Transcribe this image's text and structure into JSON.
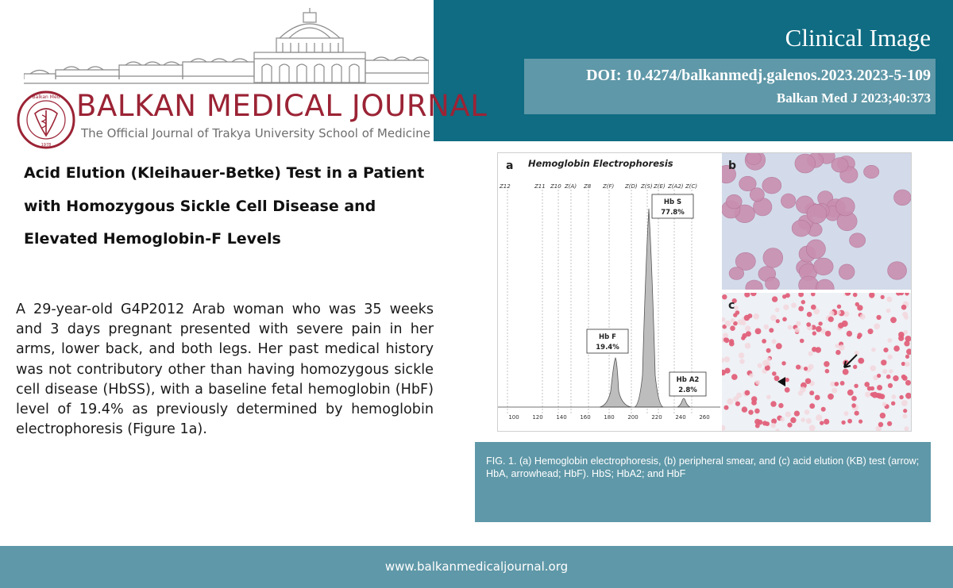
{
  "header": {
    "article_type": "Clinical Image",
    "doi": "DOI: 10.4274/balkanmedj.galenos.2023.2023-5-109",
    "citation": "Balkan Med J 2023;40:373",
    "colors": {
      "panel": "#0f6c82",
      "doi_box": "#5f98a8"
    }
  },
  "logo": {
    "journal_name": "BALKAN MEDICAL JOURNAL",
    "subtitle": "The Official Journal of Trakya University School of Medicine",
    "seal_text": "Balkan Medical Journal",
    "seal_year": "1978",
    "brand_color": "#9b2335"
  },
  "article": {
    "title": "Acid Elution (Kleihauer-Betke) Test in a Patient with Homozygous Sickle Cell Disease and Elevated Hemoglobin-F Levels",
    "body": "A 29-year-old G4P2012 Arab woman who was 35 weeks and 3 days pregnant presented with severe pain in her arms, lower back, and both legs. Her past medical history was not contributory other than having homozygous sickle cell disease (HbSS), with a baseline fetal hemoglobin (HbF) level of 19.4% as previously determined by hemoglobin electrophoresis (Figure 1a)."
  },
  "figure": {
    "panel_a_label": "a",
    "panel_b_label": "b",
    "panel_c_label": "c",
    "panel_a_title": "Hemoglobin Electrophoresis",
    "zones": [
      "Z12",
      "Z11",
      "Z10",
      "Z(A)",
      "Z8",
      "Z(F)",
      "Z(D)",
      "Z(S)",
      "Z(E)",
      "Z(A2)",
      "Z(C)"
    ],
    "peak_labels": [
      {
        "name": "Hb S",
        "value": "77.8%"
      },
      {
        "name": "Hb F",
        "value": "19.4%"
      },
      {
        "name": "Hb A2",
        "value": "2.8%"
      }
    ],
    "x_ticks": [
      "100",
      "120",
      "140",
      "160",
      "180",
      "200",
      "220",
      "240",
      "260"
    ],
    "caption": "FIG. 1. (a) Hemoglobin electrophoresis, (b) peripheral smear, and (c) acid elution (KB) test (arrow; HbA, arrowhead; HbF). HbS; HbA2; and HbF"
  },
  "footer": {
    "url": "www.balkanmedicaljournal.org",
    "color": "#5f98a8"
  }
}
